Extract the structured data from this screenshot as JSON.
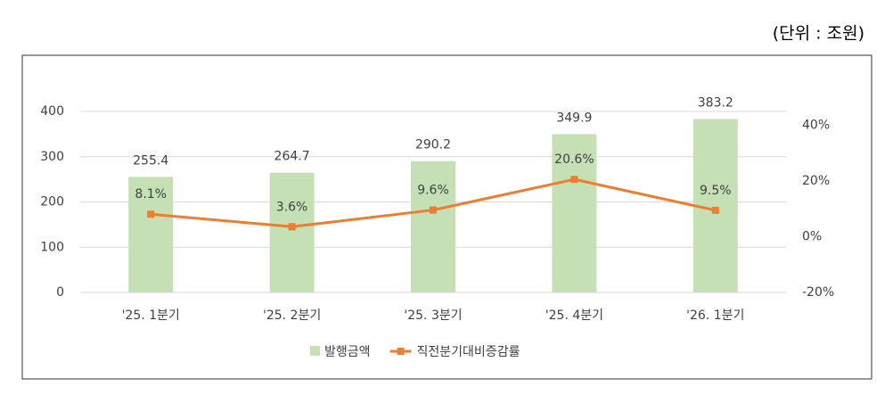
{
  "unit_note": "(단위 : 조원)",
  "chart_data": {
    "type": "bar-line",
    "categories": [
      "'25. 1분기",
      "'25. 2분기",
      "'25. 3분기",
      "'25. 4분기",
      "'26. 1분기"
    ],
    "series": [
      {
        "name": "발행금액",
        "type": "bar",
        "color": "#c5e0b4",
        "values": [
          255.4,
          264.7,
          290.2,
          349.9,
          383.2
        ]
      },
      {
        "name": "직전분기대비증감률",
        "type": "line",
        "axis": "y2",
        "color": "#ed7d31",
        "values": [
          8.1,
          3.6,
          9.6,
          20.6,
          9.5
        ],
        "value_labels": [
          "8.1%",
          "3.6%",
          "9.6%",
          "20.6%",
          "9.5%"
        ]
      }
    ],
    "ylim": [
      0,
      400
    ],
    "yticks": [
      0,
      100,
      200,
      300,
      400
    ],
    "y2lim": [
      -20,
      45
    ],
    "y2ticks": [
      {
        "value": -20,
        "label": "-20%"
      },
      {
        "value": 0,
        "label": "0%"
      },
      {
        "value": 20,
        "label": "20%"
      },
      {
        "value": 40,
        "label": "40%"
      }
    ],
    "grid": true,
    "legend": "bottom"
  }
}
